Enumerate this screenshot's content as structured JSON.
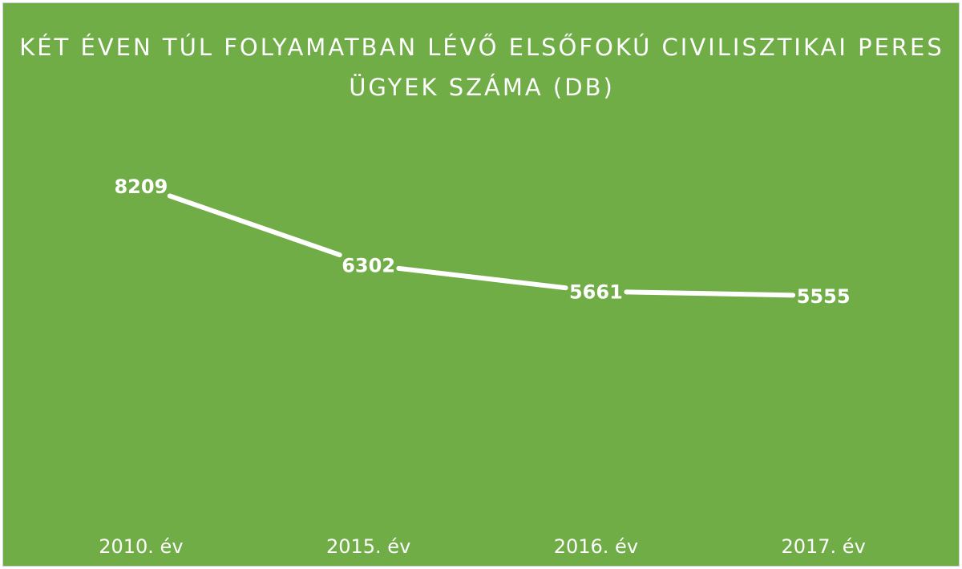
{
  "chart_data": {
    "type": "line",
    "title": "KÉT ÉVEN TÚL FOLYAMATBAN LÉVŐ ELSŐFOKÚ CIVILISZTIKAI PERES ÜGYEK SZÁMA (DB)",
    "categories": [
      "2010. év",
      "2015. év",
      "2016. év",
      "2017. év"
    ],
    "series": [
      {
        "values": [
          8209,
          6302,
          5661,
          5555
        ]
      }
    ],
    "ylim": [
      0,
      10300
    ],
    "grid": false,
    "legend": "none",
    "colors": {
      "background": "#70ad47",
      "line": "#ffffff",
      "text": "#ffffff"
    }
  }
}
